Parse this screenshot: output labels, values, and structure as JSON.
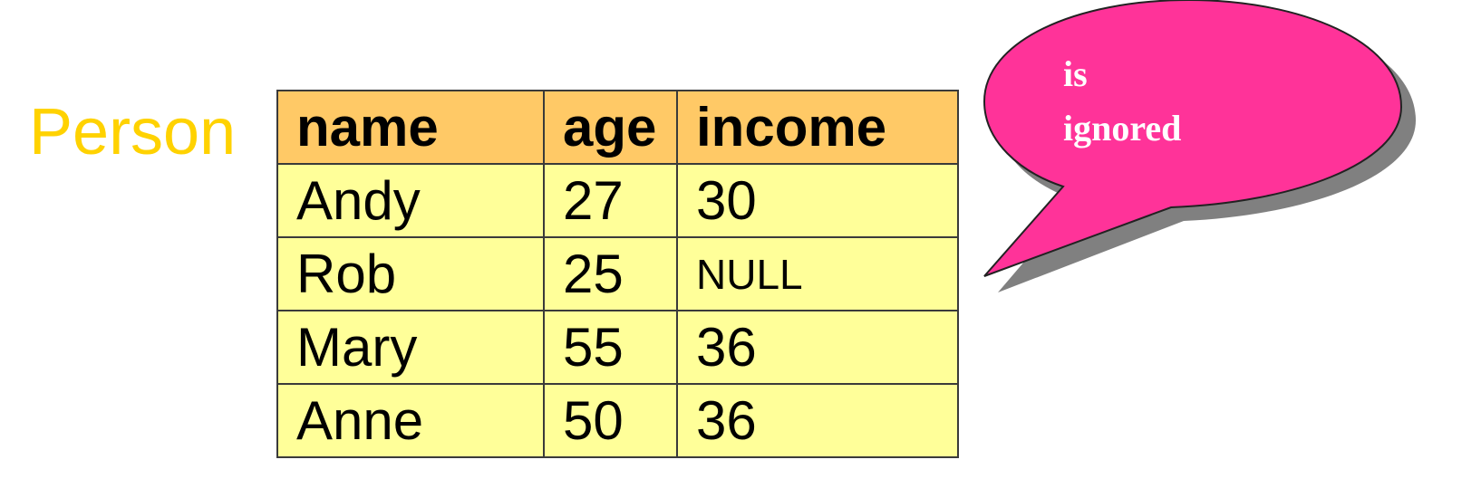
{
  "relation": {
    "name": "Person",
    "columns": [
      "name",
      "age",
      "income"
    ],
    "rows": [
      [
        "Andy",
        "27",
        "30"
      ],
      [
        "Rob",
        "25",
        "NULL"
      ],
      [
        "Mary",
        "55",
        "36"
      ],
      [
        "Anne",
        "50",
        "36"
      ]
    ]
  },
  "callout": {
    "lines": [
      "is",
      "ignored"
    ],
    "fill_color": "#ff3399",
    "text_color": "#ffffff"
  },
  "colors": {
    "relation_name": "#ffd200",
    "header_fill": "#ffc966",
    "cell_fill": "#ffff99"
  }
}
